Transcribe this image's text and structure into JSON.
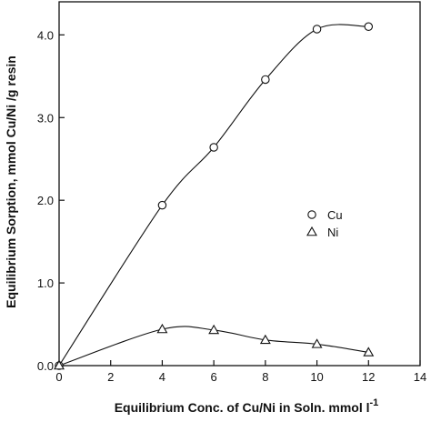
{
  "chart_data": {
    "type": "line",
    "title": "",
    "xlabel": "Equilibrium Conc. of Cu/Ni in Soln. mmol l",
    "xlabel_superscript": "-1",
    "ylabel": "Equilibrium Sorption, mmol Cu/Ni /g resin",
    "xlim": [
      0,
      14
    ],
    "ylim": [
      0,
      4.4
    ],
    "x_ticks": [
      0,
      2,
      4,
      6,
      8,
      10,
      12,
      14
    ],
    "y_ticks": [
      0.0,
      1.0,
      2.0,
      3.0,
      4.0
    ],
    "x_tick_labels": [
      "0",
      "2",
      "4",
      "6",
      "8",
      "10",
      "12",
      "14"
    ],
    "y_tick_labels": [
      "0.0",
      "1.0",
      "2.0",
      "3.0",
      "4.0"
    ],
    "grid": false,
    "legend_position": "right-middle",
    "series": [
      {
        "name": "Cu",
        "marker": "circle",
        "points": [
          [
            0,
            0.0
          ],
          [
            4,
            1.94
          ],
          [
            6,
            2.64
          ],
          [
            8,
            3.46
          ],
          [
            10,
            4.07
          ],
          [
            12,
            4.1
          ]
        ]
      },
      {
        "name": "Ni",
        "marker": "triangle",
        "points": [
          [
            0,
            0.0
          ],
          [
            4,
            0.44
          ],
          [
            6,
            0.43
          ],
          [
            8,
            0.31
          ],
          [
            10,
            0.26
          ],
          [
            12,
            0.16
          ]
        ]
      }
    ]
  }
}
